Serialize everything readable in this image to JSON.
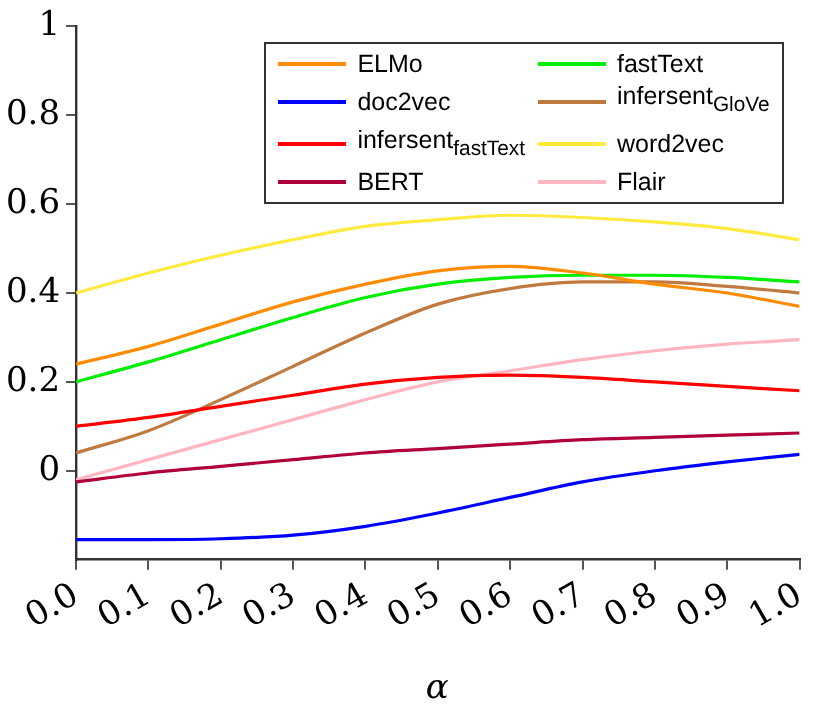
{
  "chart_data": {
    "type": "line",
    "xlabel": "α",
    "x": [
      0,
      0.1,
      0.2,
      0.3,
      0.4,
      0.5,
      0.6,
      0.7,
      0.8,
      0.9,
      1.0
    ],
    "xlim": [
      0,
      1
    ],
    "xticks": [
      {
        "value": 0,
        "label": "0.0"
      },
      {
        "value": 0.1,
        "label": "0.1"
      },
      {
        "value": 0.2,
        "label": "0.2"
      },
      {
        "value": 0.3,
        "label": "0.3"
      },
      {
        "value": 0.4,
        "label": "0.4"
      },
      {
        "value": 0.5,
        "label": "0.5"
      },
      {
        "value": 0.6,
        "label": "0.6"
      },
      {
        "value": 0.7,
        "label": "0.7"
      },
      {
        "value": 0.8,
        "label": "0.8"
      },
      {
        "value": 0.9,
        "label": "0.9"
      },
      {
        "value": 1,
        "label": "1.0"
      }
    ],
    "ylim": [
      -0.2,
      1
    ],
    "yticks": [
      0,
      0.2,
      0.4,
      0.6,
      0.8,
      1
    ],
    "grid": false,
    "legend": "top right",
    "marker": "none",
    "line_style": "solid",
    "series": [
      {
        "name": "ELMo",
        "color": "#ff8c00",
        "values": [
          0.24,
          0.28,
          0.33,
          0.38,
          0.42,
          0.45,
          0.46,
          0.445,
          0.42,
          0.4,
          0.37
        ]
      },
      {
        "name": "doc2vec",
        "color": "#0000ff",
        "values": [
          -0.155,
          -0.155,
          -0.153,
          -0.145,
          -0.125,
          -0.095,
          -0.06,
          -0.025,
          0,
          0.02,
          0.037
        ]
      },
      {
        "name": "infersent$_{fastText}$",
        "color": "#ff0000",
        "values": [
          0.1,
          0.12,
          0.145,
          0.17,
          0.195,
          0.21,
          0.215,
          0.21,
          0.2,
          0.19,
          0.18
        ]
      },
      {
        "name": "BERT",
        "color": "#b0003a",
        "values": [
          -0.025,
          -0.005,
          0.01,
          0.025,
          0.04,
          0.05,
          0.06,
          0.07,
          0.075,
          0.08,
          0.085
        ]
      },
      {
        "name": "fastText",
        "color": "#00ee00",
        "values": [
          0.2,
          0.245,
          0.295,
          0.345,
          0.39,
          0.42,
          0.435,
          0.44,
          0.44,
          0.435,
          0.425
        ]
      },
      {
        "name": "infersent$_{GloVe}$",
        "color": "#c07a40",
        "values": [
          0.04,
          0.09,
          0.16,
          0.235,
          0.31,
          0.375,
          0.41,
          0.425,
          0.425,
          0.415,
          0.4
        ]
      },
      {
        "name": "word2vec",
        "color": "#ffea40",
        "values": [
          0.4,
          0.445,
          0.485,
          0.52,
          0.55,
          0.565,
          0.575,
          0.57,
          0.56,
          0.545,
          0.52
        ]
      },
      {
        "name": "Flair",
        "color": "#ffb6c1",
        "values": [
          -0.02,
          0.025,
          0.07,
          0.115,
          0.16,
          0.2,
          0.225,
          0.25,
          0.27,
          0.285,
          0.295
        ]
      }
    ]
  }
}
